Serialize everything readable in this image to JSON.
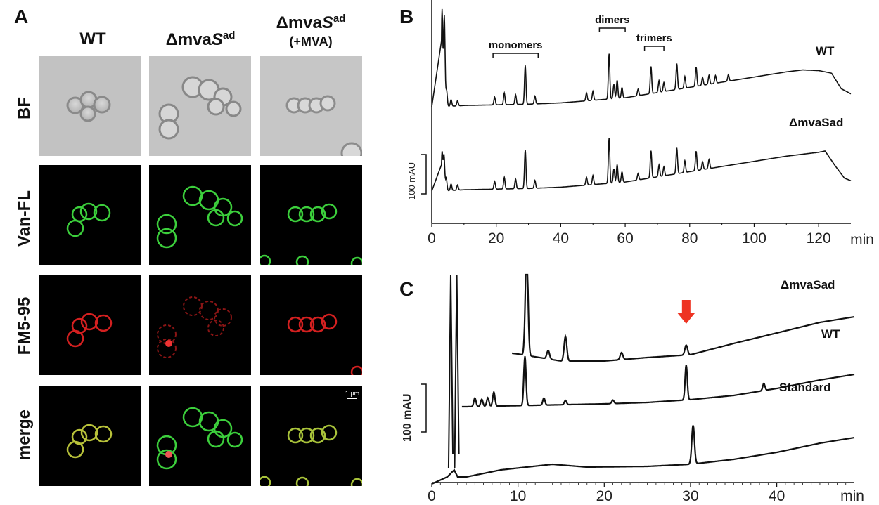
{
  "panel_a": {
    "letter": "A",
    "columns": [
      {
        "main": "WT",
        "sup": "",
        "note": ""
      },
      {
        "main": "Δmva",
        "ital": "S",
        "sup": "ad",
        "note": ""
      },
      {
        "main": "Δmva",
        "ital": "S",
        "sup": "ad",
        "note": "(+MVA)"
      }
    ],
    "rows": [
      "BF",
      "Van-FL",
      "FM5-95",
      "merge"
    ],
    "scale_bar": "1 µm"
  },
  "chart_data": [
    {
      "id": "B",
      "type": "line",
      "panel_letter": "B",
      "xlabel": "min",
      "xlim": [
        0,
        130
      ],
      "xticks": [
        0,
        20,
        40,
        60,
        80,
        100,
        120
      ],
      "scale_bar_label": "100 mAU",
      "annotations": [
        {
          "text": "monomers",
          "x_from": 19,
          "x_to": 33
        },
        {
          "text": "dimers",
          "x_from": 52,
          "x_to": 60
        },
        {
          "text": "trimers",
          "x_from": 66,
          "x_to": 72
        }
      ],
      "series": [
        {
          "name": "WT",
          "baseline": [
            [
              0,
              0
            ],
            [
              3,
              0
            ],
            [
              10,
              2
            ],
            [
              20,
              3
            ],
            [
              30,
              4
            ],
            [
              40,
              6
            ],
            [
              50,
              10
            ],
            [
              60,
              14
            ],
            [
              70,
              22
            ],
            [
              80,
              30
            ],
            [
              90,
              38
            ],
            [
              100,
              46
            ],
            [
              110,
              54
            ],
            [
              115,
              57
            ],
            [
              120,
              56
            ],
            [
              124,
              52
            ],
            [
              127,
              28
            ],
            [
              130,
              20
            ]
          ],
          "peaks": [
            [
              3.2,
              150
            ],
            [
              3.9,
              140
            ],
            [
              4.6,
              25
            ],
            [
              6,
              10
            ],
            [
              8,
              8
            ],
            [
              19.5,
              12
            ],
            [
              22.5,
              18
            ],
            [
              26,
              15
            ],
            [
              29,
              60
            ],
            [
              32,
              12
            ],
            [
              48,
              12
            ],
            [
              50,
              14
            ],
            [
              55,
              70
            ],
            [
              56.5,
              22
            ],
            [
              57.5,
              28
            ],
            [
              59,
              16
            ],
            [
              64,
              10
            ],
            [
              68,
              42
            ],
            [
              70.5,
              18
            ],
            [
              72,
              14
            ],
            [
              76,
              40
            ],
            [
              78.5,
              18
            ],
            [
              82,
              30
            ],
            [
              84,
              12
            ],
            [
              86,
              14
            ],
            [
              88,
              12
            ],
            [
              92,
              10
            ]
          ]
        },
        {
          "name": "ΔmvaSad",
          "baseline": [
            [
              0,
              0
            ],
            [
              3,
              0
            ],
            [
              10,
              2
            ],
            [
              20,
              3
            ],
            [
              30,
              4
            ],
            [
              40,
              6
            ],
            [
              50,
              10
            ],
            [
              60,
              14
            ],
            [
              70,
              22
            ],
            [
              80,
              30
            ],
            [
              90,
              38
            ],
            [
              100,
              46
            ],
            [
              110,
              54
            ],
            [
              115,
              57
            ],
            [
              120,
              60
            ],
            [
              122,
              62
            ],
            [
              125,
              40
            ],
            [
              128,
              20
            ],
            [
              130,
              16
            ]
          ],
          "peaks": [
            [
              3.2,
              60
            ],
            [
              3.8,
              55
            ],
            [
              4.5,
              20
            ],
            [
              6,
              10
            ],
            [
              8,
              8
            ],
            [
              19.5,
              12
            ],
            [
              22.5,
              18
            ],
            [
              26,
              15
            ],
            [
              29,
              60
            ],
            [
              32,
              12
            ],
            [
              48,
              12
            ],
            [
              50,
              14
            ],
            [
              55,
              70
            ],
            [
              56.5,
              22
            ],
            [
              57.5,
              28
            ],
            [
              59,
              16
            ],
            [
              64,
              10
            ],
            [
              68,
              42
            ],
            [
              70.5,
              18
            ],
            [
              72,
              14
            ],
            [
              76,
              40
            ],
            [
              78.5,
              18
            ],
            [
              82,
              30
            ],
            [
              84,
              12
            ],
            [
              86,
              14
            ]
          ]
        }
      ]
    },
    {
      "id": "C",
      "type": "line",
      "panel_letter": "C",
      "xlabel": "min",
      "xlim": [
        0,
        49
      ],
      "xticks": [
        0,
        10,
        20,
        30,
        40
      ],
      "scale_bar_label": "100 mAU",
      "marker": {
        "type": "arrow",
        "x": 29.5,
        "color": "#ee3322"
      },
      "series": [
        {
          "name": "ΔmvaSad",
          "baseline": [
            [
              4,
              0
            ],
            [
              8,
              -2
            ],
            [
              10,
              -5
            ],
            [
              15,
              -15
            ],
            [
              20,
              -15
            ],
            [
              25,
              -10
            ],
            [
              30,
              -6
            ],
            [
              35,
              10
            ],
            [
              40,
              25
            ],
            [
              45,
              40
            ],
            [
              49,
              48
            ]
          ],
          "peaks": [
            [
              11,
              150
            ],
            [
              13.5,
              12
            ],
            [
              15.5,
              35
            ],
            [
              22,
              10
            ],
            [
              29.5,
              14
            ]
          ]
        },
        {
          "name": "WT",
          "baseline": [
            [
              4,
              0
            ],
            [
              8,
              1
            ],
            [
              12,
              2
            ],
            [
              16,
              3
            ],
            [
              20,
              4
            ],
            [
              25,
              6
            ],
            [
              30,
              10
            ],
            [
              35,
              16
            ],
            [
              40,
              26
            ],
            [
              45,
              38
            ],
            [
              49,
              46
            ]
          ],
          "peaks": [
            [
              5,
              12
            ],
            [
              5.8,
              10
            ],
            [
              6.5,
              12
            ],
            [
              7.2,
              20
            ],
            [
              10.8,
              70
            ],
            [
              13,
              10
            ],
            [
              15.5,
              6
            ],
            [
              21,
              5
            ],
            [
              29.5,
              50
            ],
            [
              38.5,
              10
            ]
          ]
        },
        {
          "name": "Standard",
          "baseline": [
            [
              0,
              -10
            ],
            [
              1.8,
              0
            ],
            [
              2.6,
              10
            ],
            [
              3,
              0
            ],
            [
              4,
              0
            ],
            [
              8,
              10
            ],
            [
              14,
              18
            ],
            [
              18,
              14
            ],
            [
              25,
              15
            ],
            [
              30,
              18
            ],
            [
              35,
              25
            ],
            [
              40,
              35
            ],
            [
              45,
              48
            ],
            [
              49,
              56
            ]
          ],
          "peaks": [
            [
              30.3,
              55
            ]
          ]
        }
      ],
      "series_labels": [
        "ΔmvaSad",
        "WT",
        "Standard"
      ]
    }
  ],
  "labels": {
    "b_wt": "WT",
    "b_mut": "ΔmvaSad",
    "c_mut": "ΔmvaSad",
    "c_wt": "WT",
    "c_std": "Standard"
  }
}
